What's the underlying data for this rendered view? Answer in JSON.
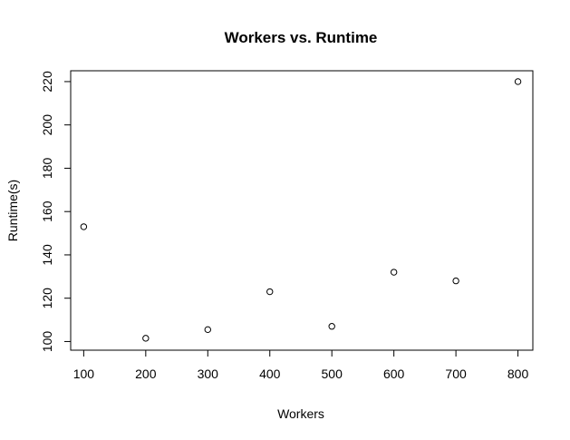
{
  "chart_data": {
    "type": "scatter",
    "title": "Workers vs. Runtime",
    "xlabel": "Workers",
    "ylabel": "Runtime(s)",
    "x": [
      100,
      200,
      300,
      400,
      500,
      600,
      700,
      800
    ],
    "y": [
      153,
      101.5,
      105.5,
      123,
      107,
      132,
      128,
      220
    ],
    "xlim": [
      79,
      824
    ],
    "ylim": [
      96,
      225
    ],
    "x_ticks": [
      "100",
      "200",
      "300",
      "400",
      "500",
      "600",
      "700",
      "800"
    ],
    "y_ticks": [
      "100",
      "120",
      "140",
      "160",
      "180",
      "200",
      "220"
    ],
    "grid": false,
    "marker": "open-circle",
    "colors": {
      "marker": "#000000",
      "axis": "#000000",
      "background": "#ffffff"
    }
  }
}
